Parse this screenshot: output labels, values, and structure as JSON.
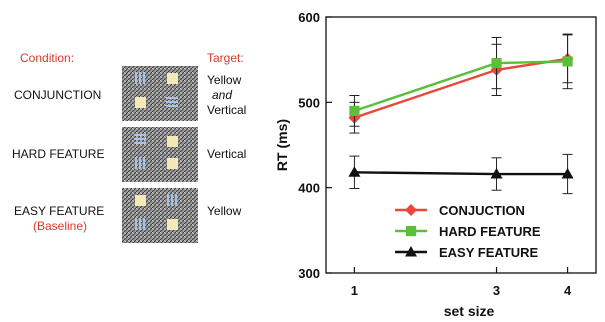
{
  "left_panel": {
    "condition_header": "Condition:",
    "target_header": "Target:",
    "rows": [
      {
        "condition": "CONJUNCTION",
        "sub": "",
        "target_lines": [
          "Yellow",
          "and",
          "Vertical"
        ]
      },
      {
        "condition": "HARD FEATURE",
        "sub": "",
        "target_lines": [
          "Vertical"
        ]
      },
      {
        "condition": "EASY FEATURE",
        "sub": "(Baseline)",
        "target_lines": [
          "Yellow"
        ]
      }
    ],
    "colors": {
      "label_red": "#d73a2e",
      "display_gray": "#8f8f8f",
      "yellow_square": "#f2e9b6",
      "blue_bar": "#a9c3e6"
    }
  },
  "chart_data": {
    "type": "line",
    "xlabel": "set size",
    "ylabel": "RT (ms)",
    "x": [
      1,
      3,
      4
    ],
    "xticks": [
      "1",
      "3",
      "4"
    ],
    "xlim": [
      0.6,
      4.4
    ],
    "ylim": [
      300,
      600
    ],
    "yticks": [
      "300",
      "400",
      "500",
      "600"
    ],
    "series": [
      {
        "name": "CONJUCTION",
        "color": "#e8473a",
        "marker": "diamond",
        "values": [
          482,
          538,
          551
        ],
        "err": [
          18,
          30,
          28
        ]
      },
      {
        "name": "HARD FEATURE",
        "color": "#5bbf3a",
        "marker": "square",
        "values": [
          490,
          546,
          548
        ],
        "err": [
          18,
          30,
          32
        ]
      },
      {
        "name": "EASY FEATURE",
        "color": "#111111",
        "marker": "triangle",
        "values": [
          418,
          416,
          416
        ],
        "err": [
          19,
          19,
          23
        ]
      }
    ],
    "legend_position": "lower-right",
    "grid": false
  }
}
